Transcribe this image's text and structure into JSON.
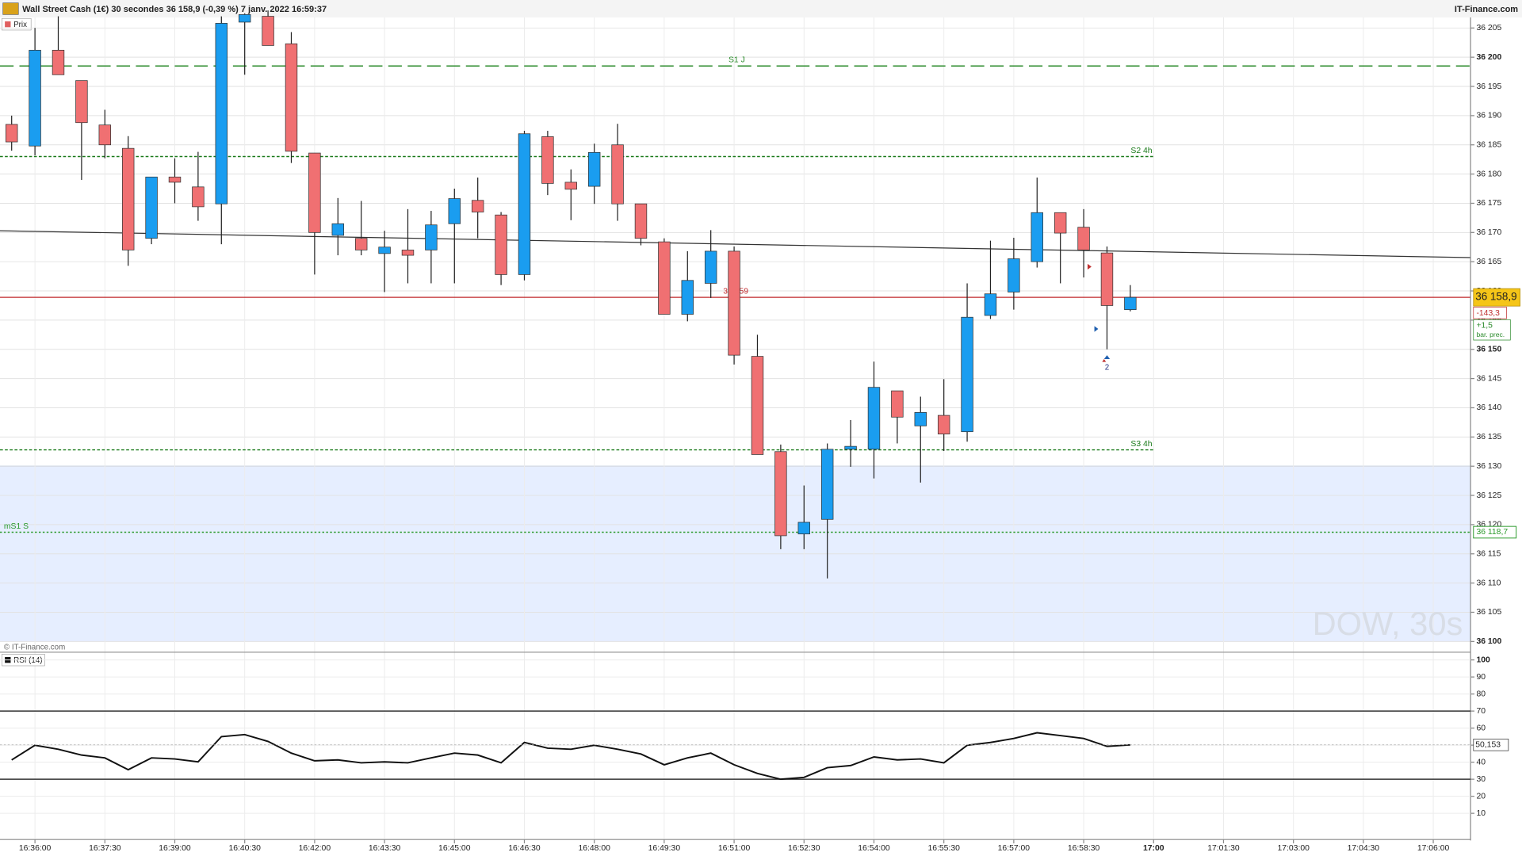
{
  "chart_data": {
    "type": "candlestick",
    "title": "Wall Street Cash (1€) 30 secondes 36 158,9 (-0,39 %) 7 janv. 2022 16:59:37",
    "source": "IT-Finance.com",
    "panel_label": "Prix",
    "watermark": "DOW, 30s",
    "copyright": "© IT-Finance.com",
    "up_color": "#1a9df0",
    "down_color": "#f07072",
    "ylim": [
      36098.5,
      36206.8
    ],
    "yticks": [
      {
        "value": 36205,
        "label": "36 205"
      },
      {
        "value": 36200,
        "label": "36 200"
      },
      {
        "value": 36195,
        "label": "36 195"
      },
      {
        "value": 36190,
        "label": "36 190"
      },
      {
        "value": 36185,
        "label": "36 185"
      },
      {
        "value": 36180,
        "label": "36 180"
      },
      {
        "value": 36175,
        "label": "36 175"
      },
      {
        "value": 36170,
        "label": "36 170"
      },
      {
        "value": 36165,
        "label": "36 165"
      },
      {
        "value": 36160,
        "label": "36 160"
      },
      {
        "value": 36155,
        "label": "36 155"
      },
      {
        "value": 36150,
        "label": "36 150"
      },
      {
        "value": 36145,
        "label": "36 145"
      },
      {
        "value": 36140,
        "label": "36 140"
      },
      {
        "value": 36135,
        "label": "36 135"
      },
      {
        "value": 36130,
        "label": "36 130"
      },
      {
        "value": 36125,
        "label": "36 125"
      },
      {
        "value": 36120,
        "label": "36 120"
      },
      {
        "value": 36115,
        "label": "36 115"
      },
      {
        "value": 36110,
        "label": "36 110"
      },
      {
        "value": 36105,
        "label": "36 105"
      },
      {
        "value": 36100,
        "label": "36 100"
      }
    ],
    "xlim": [
      -0.5,
      62.6
    ],
    "xticks": [
      {
        "value": 1,
        "label": "16:36:00"
      },
      {
        "value": 4,
        "label": "16:37:30"
      },
      {
        "value": 7,
        "label": "16:39:00"
      },
      {
        "value": 10,
        "label": "16:40:30"
      },
      {
        "value": 13,
        "label": "16:42:00"
      },
      {
        "value": 16,
        "label": "16:43:30"
      },
      {
        "value": 19,
        "label": "16:45:00"
      },
      {
        "value": 22,
        "label": "16:46:30"
      },
      {
        "value": 25,
        "label": "16:48:00"
      },
      {
        "value": 28,
        "label": "16:49:30"
      },
      {
        "value": 31,
        "label": "16:51:00"
      },
      {
        "value": 34,
        "label": "16:52:30"
      },
      {
        "value": 37,
        "label": "16:54:00"
      },
      {
        "value": 40,
        "label": "16:55:30"
      },
      {
        "value": 43,
        "label": "16:57:00"
      },
      {
        "value": 46,
        "label": "16:58:30"
      },
      {
        "value": 49,
        "label": "17:00"
      },
      {
        "value": 52,
        "label": "17:01:30"
      },
      {
        "value": 55,
        "label": "17:03:00"
      },
      {
        "value": 58,
        "label": "17:04:30"
      },
      {
        "value": 61,
        "label": "17:06:00"
      }
    ],
    "open": [
      36188.5,
      36184.8,
      36201.2,
      36196,
      36188.4,
      36184.4,
      36169,
      36179.5,
      36177.8,
      36174.9,
      36206,
      36207,
      36202.3,
      36183.6,
      36169.5,
      36169,
      36166.4,
      36167,
      36167,
      36171.5,
      36175.5,
      36173,
      36162.8,
      36186.4,
      36178.6,
      36177.9,
      36185,
      36174.9,
      36168.4,
      36156,
      36161.3,
      36166.8,
      36148.8,
      36132.5,
      36118.4,
      36120.9,
      36132.9,
      36132.9,
      36142.9,
      36136.9,
      36138.7,
      36135.9,
      36155.8,
      36159.8,
      36165,
      36173.4,
      36170.9,
      36166.5,
      36156.8
    ],
    "high": [
      36190,
      36205,
      36207,
      36196,
      36191,
      36186.5,
      36179.5,
      36182.7,
      36183.8,
      36207,
      36207.5,
      36208,
      36204.3,
      36183.6,
      36175.9,
      36175.4,
      36170.3,
      36174,
      36173.7,
      36177.5,
      36179.4,
      36173.5,
      36187.4,
      36187.4,
      36180.8,
      36185.2,
      36188.6,
      36174.9,
      36169,
      36166.8,
      36170.4,
      36167.6,
      36152.5,
      36133.7,
      36126.7,
      36133.9,
      36137.9,
      36147.9,
      36142.9,
      36141.9,
      36144.9,
      36161.3,
      36168.6,
      36169.1,
      36179.4,
      36173.4,
      36174,
      36167.6,
      36161
    ],
    "low": [
      36184,
      36183.2,
      36197,
      36179,
      36182.7,
      36164.3,
      36168,
      36175,
      36172,
      36168,
      36197,
      36202,
      36181.9,
      36162.8,
      36166.1,
      36166.1,
      36159.8,
      36161.3,
      36161.3,
      36161.3,
      36169,
      36161,
      36161.8,
      36176.4,
      36172.1,
      36174.9,
      36172,
      36167.8,
      36156,
      36154.8,
      36158.8,
      36147.4,
      36132,
      36115.8,
      36115.8,
      36110.8,
      36129.9,
      36127.9,
      36133.9,
      36127.2,
      36132.6,
      36134.2,
      36155.2,
      36156.8,
      36164,
      36161.3,
      36162.3,
      36150,
      36156.5
    ],
    "close": [
      36185.5,
      36201.2,
      36197,
      36188.8,
      36185,
      36167,
      36179.5,
      36178.6,
      36174.4,
      36205.8,
      36207.3,
      36202,
      36183.9,
      36170,
      36171.5,
      36167,
      36167.5,
      36166.1,
      36171.3,
      36175.8,
      36173.5,
      36162.8,
      36186.9,
      36178.4,
      36177.4,
      36183.7,
      36174.9,
      36169,
      36156,
      36161.8,
      36166.8,
      36149,
      36132,
      36118.1,
      36120.4,
      36132.9,
      36133.4,
      36143.5,
      36138.4,
      36139.2,
      36135.5,
      36155.5,
      36159.5,
      36165.5,
      36173.4,
      36169.9,
      36167,
      36157.5,
      36158.9
    ],
    "levels": [
      {
        "name": "S1 J",
        "value": 36198.5,
        "color": "#2a8a2a",
        "style": "long-dash"
      },
      {
        "name": "S2 4h",
        "value": 36183,
        "color": "#1a7a1a",
        "style": "short"
      },
      {
        "name": "S3 4h",
        "value": 36132.8,
        "color": "#1a7a1a",
        "style": "short"
      },
      {
        "name": "mS1 S",
        "value": 36118.7,
        "value_label": "36 118,7",
        "color": "#2a9a2a",
        "style": "fine"
      }
    ],
    "last_price": {
      "value": 36158.9,
      "label": "36 158,9",
      "chart_label": "36 159",
      "color": "#c0282c"
    },
    "change": "-143,3",
    "change_prev": "+1,5",
    "change_prev_label": "bar. prec.",
    "signal_count": "2",
    "trend_line": [
      36170.3,
      36165.7
    ],
    "zone": [
      36100,
      36130
    ],
    "zone_color": "#e6eeff",
    "rsi": {
      "name": "RSI (14)",
      "values": [
        41.3,
        49.9,
        47.6,
        44.2,
        42.5,
        35.6,
        42.5,
        41.9,
        40.2,
        55,
        56.2,
        52.2,
        45.3,
        40.8,
        41.3,
        39.6,
        40.2,
        39.6,
        42.5,
        45.3,
        44.2,
        39.6,
        51.6,
        48.2,
        47.6,
        49.9,
        47.6,
        44.8,
        38.5,
        42.5,
        45.3,
        38.5,
        33.4,
        30,
        31.1,
        36.8,
        38,
        43.1,
        41.3,
        41.9,
        39.6,
        49.9,
        51.6,
        53.9,
        57.3,
        55.6,
        53.9,
        49.3,
        50.153
      ],
      "value_label": "50,153",
      "ylim": [
        -4.8,
        103.4
      ],
      "yticks": [
        100,
        90,
        80,
        70,
        60,
        50,
        40,
        30,
        20,
        10
      ],
      "bands": [
        70,
        30
      ]
    }
  }
}
